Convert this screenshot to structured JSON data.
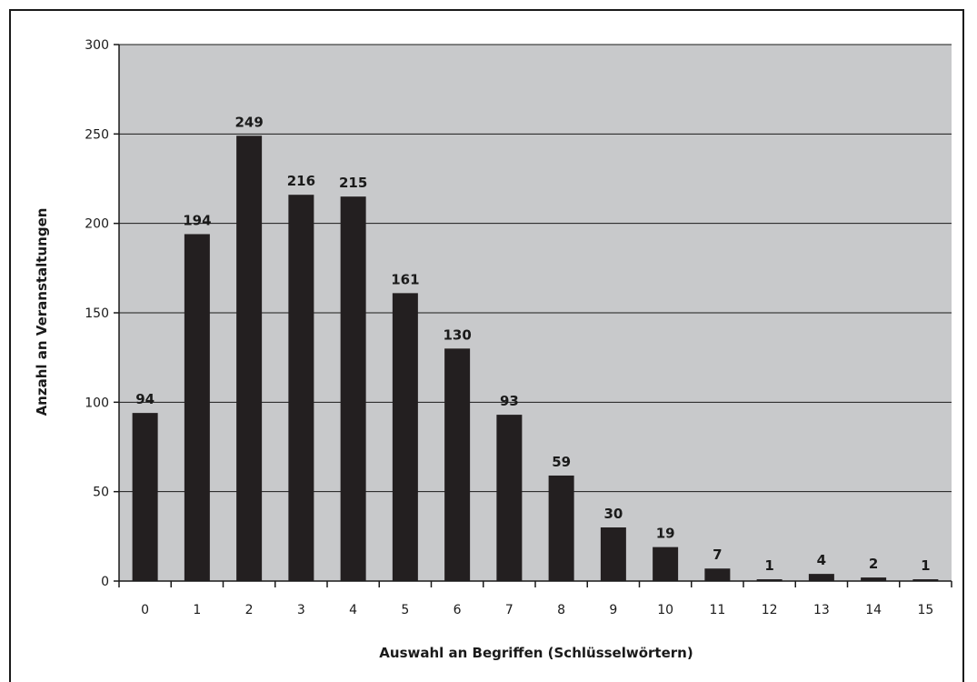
{
  "chart_data": {
    "type": "bar",
    "categories": [
      "0",
      "1",
      "2",
      "3",
      "4",
      "5",
      "6",
      "7",
      "8",
      "9",
      "10",
      "11",
      "12",
      "13",
      "14",
      "15"
    ],
    "values": [
      94,
      194,
      249,
      216,
      215,
      161,
      130,
      93,
      59,
      30,
      19,
      7,
      1,
      4,
      2,
      1
    ],
    "data_labels": [
      "94",
      "194",
      "249",
      "216",
      "215",
      "161",
      "130",
      "93",
      "59",
      "30",
      "19",
      "7",
      "1",
      "4",
      "2",
      "1"
    ],
    "title": "",
    "xlabel": "Auswahl an Begriffen (Schlüsselwörtern)",
    "ylabel": "Anzahl an Veranstaltungen",
    "ylim": [
      0,
      300
    ],
    "yticks": [
      0,
      50,
      100,
      150,
      200,
      250,
      300
    ],
    "ytick_labels": [
      "0",
      "50",
      "100",
      "150",
      "200",
      "250",
      "300"
    ],
    "grid": true,
    "legend": "none",
    "colors": {
      "bar": "#231f20",
      "plot_background": "#c8c9cb",
      "gridline": "#1a1a1a",
      "axis": "#1a1a1a",
      "frame": "#1a1a1a"
    }
  }
}
